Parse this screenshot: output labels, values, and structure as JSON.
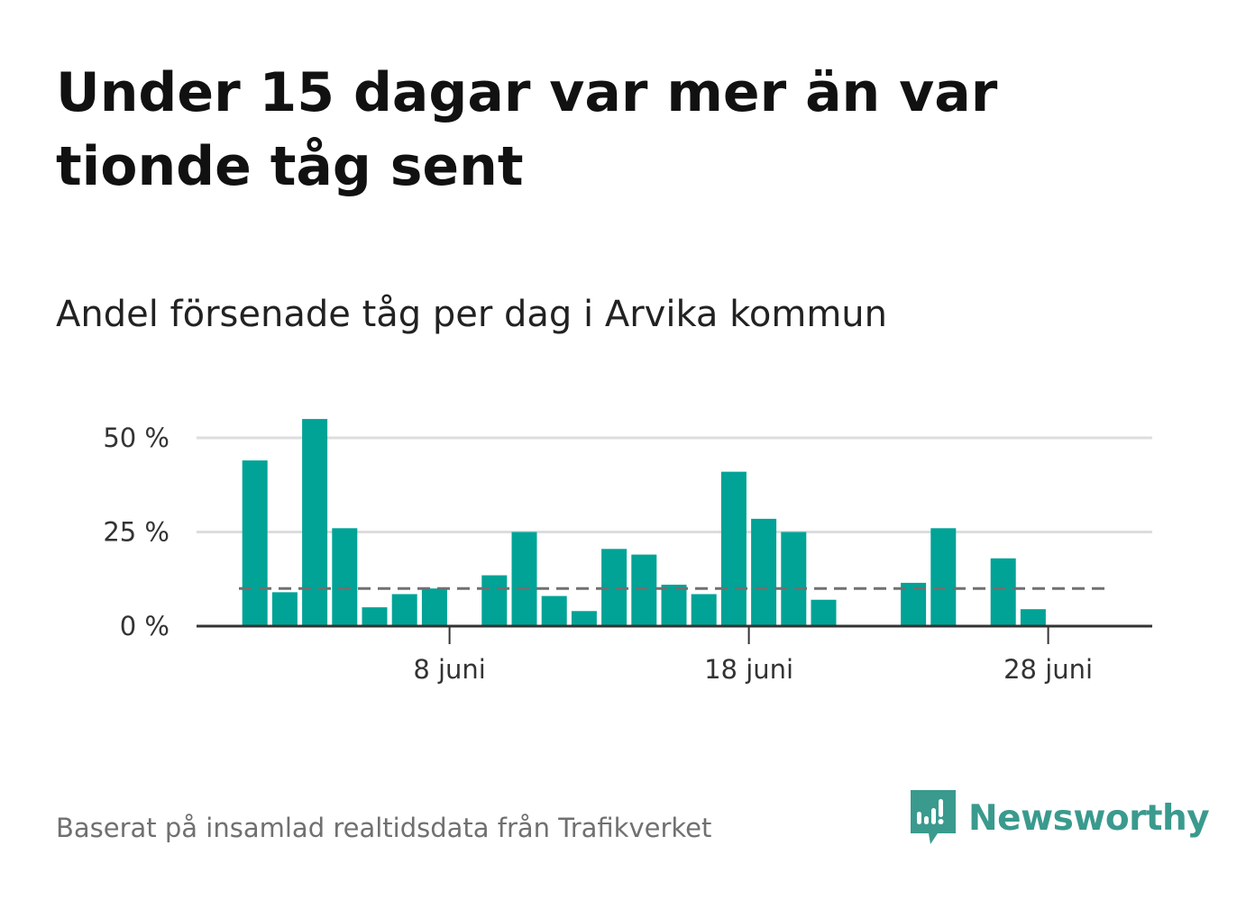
{
  "header": {
    "title": "Under 15 dagar var mer än var tionde tåg sent",
    "subtitle": "Andel försenade tåg per dag i Arvika kommun"
  },
  "footer": {
    "source": "Baserat på insamlad realtidsdata från Trafikverket",
    "brand": "Newsworthy"
  },
  "colors": {
    "bar": "#00a396",
    "reference_line": "#707070",
    "grid": "#dddddd",
    "axis": "#333333",
    "brand": "#3a9a8e"
  },
  "chart_data": {
    "type": "bar",
    "x": [
      1,
      2,
      3,
      4,
      5,
      6,
      7,
      8,
      9,
      10,
      11,
      12,
      13,
      14,
      15,
      16,
      17,
      18,
      19,
      20,
      21,
      22,
      23,
      24,
      25,
      26,
      27,
      28,
      29,
      30
    ],
    "values": [
      44,
      9,
      55,
      26,
      5,
      8.5,
      10,
      0,
      13.5,
      25,
      8,
      4,
      20.5,
      19,
      11,
      8.5,
      41,
      28.5,
      25,
      7,
      0,
      0,
      11.5,
      26,
      0,
      18,
      4.5,
      0,
      0,
      0
    ],
    "x_ticks": [
      {
        "x": 8,
        "label": "8 juni"
      },
      {
        "x": 18,
        "label": "18 juni"
      },
      {
        "x": 28,
        "label": "28 juni"
      }
    ],
    "y_ticks": [
      {
        "value": 0,
        "label": "0 %"
      },
      {
        "value": 25,
        "label": "25 %"
      },
      {
        "value": 50,
        "label": "50 %"
      }
    ],
    "reference_line": {
      "value": 10,
      "style": "dashed"
    },
    "ylim": [
      0,
      55
    ],
    "xlim": [
      0,
      31
    ],
    "grid": true,
    "xlabel": "",
    "ylabel": ""
  }
}
